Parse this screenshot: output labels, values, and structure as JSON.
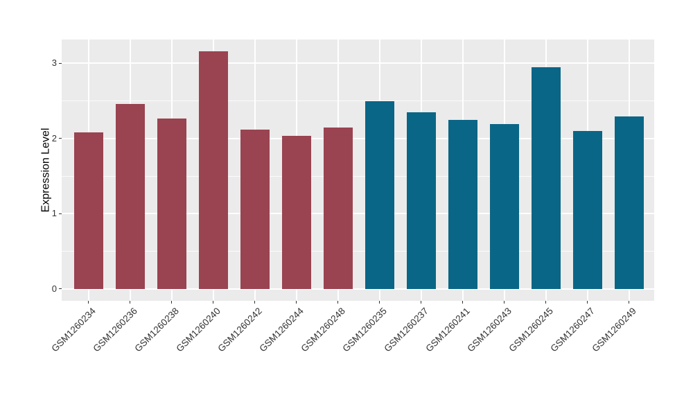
{
  "chart_data": {
    "type": "bar",
    "title": "",
    "xlabel": "",
    "ylabel": "Expression Level",
    "categories": [
      "GSM1260234",
      "GSM1260236",
      "GSM1260238",
      "GSM1260240",
      "GSM1260242",
      "GSM1260244",
      "GSM1260248",
      "GSM1260235",
      "GSM1260237",
      "GSM1260241",
      "GSM1260243",
      "GSM1260245",
      "GSM1260247",
      "GSM1260249"
    ],
    "values": [
      2.08,
      2.46,
      2.27,
      3.16,
      2.12,
      2.04,
      2.15,
      2.5,
      2.35,
      2.25,
      2.19,
      2.95,
      2.1,
      2.29
    ],
    "bar_colors": [
      "#9A4351",
      "#9A4351",
      "#9A4351",
      "#9A4351",
      "#9A4351",
      "#9A4351",
      "#9A4351",
      "#0A6686",
      "#0A6686",
      "#0A6686",
      "#0A6686",
      "#0A6686",
      "#0A6686",
      "#0A6686"
    ],
    "group_colors": {
      "left_group_maroon": "#9A4351",
      "right_group_teal": "#0A6686"
    },
    "yticks": [
      0,
      1,
      2,
      3
    ],
    "ytick_labels": [
      "0",
      "1",
      "2",
      "3"
    ],
    "yticks_minor": [
      0.5,
      1.5,
      2.5
    ],
    "ylim_data": [
      0,
      3.16
    ],
    "axis_expansion_fraction": 0.05,
    "x_tick_angle_deg": 45,
    "legend": "none",
    "grid": "horizontal major+minor and vertical major white gridlines on gray panel",
    "panel_background": "#EBEBEB",
    "grid_color": "#FFFFFF",
    "axis_text_color": "#333333",
    "figure_background": "#FFFFFF"
  }
}
